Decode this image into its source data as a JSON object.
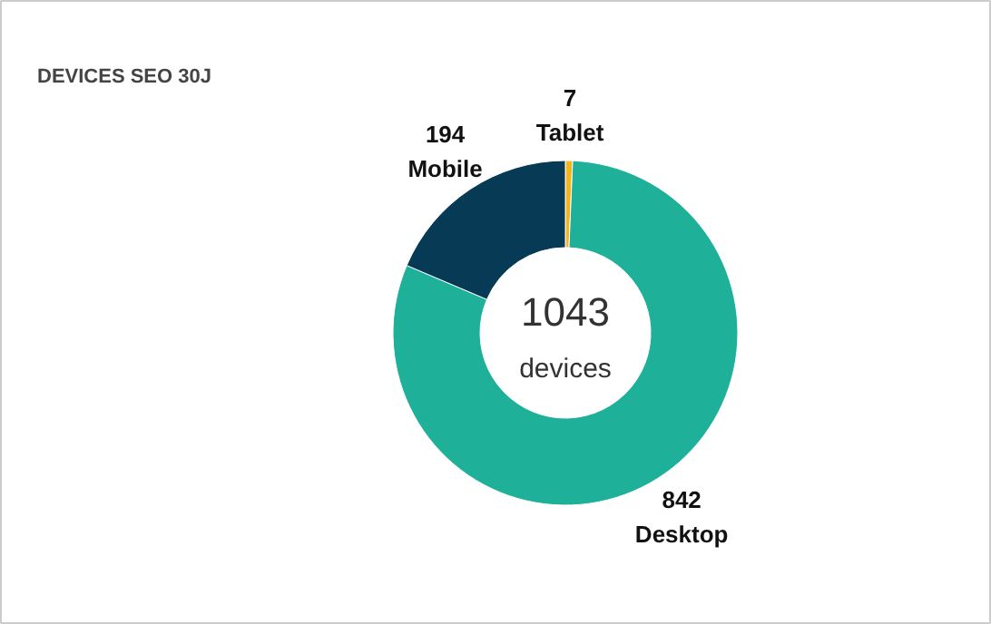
{
  "chart_data": {
    "type": "donut",
    "title": "DEVICES SEO 30J",
    "categories": [
      "Tablet",
      "Desktop",
      "Mobile"
    ],
    "values": [
      7,
      842,
      194
    ],
    "colors": [
      "#f2b51c",
      "#1fb09a",
      "#073b55"
    ],
    "data_labels": true,
    "annotations": [
      "1043",
      "devices"
    ]
  }
}
